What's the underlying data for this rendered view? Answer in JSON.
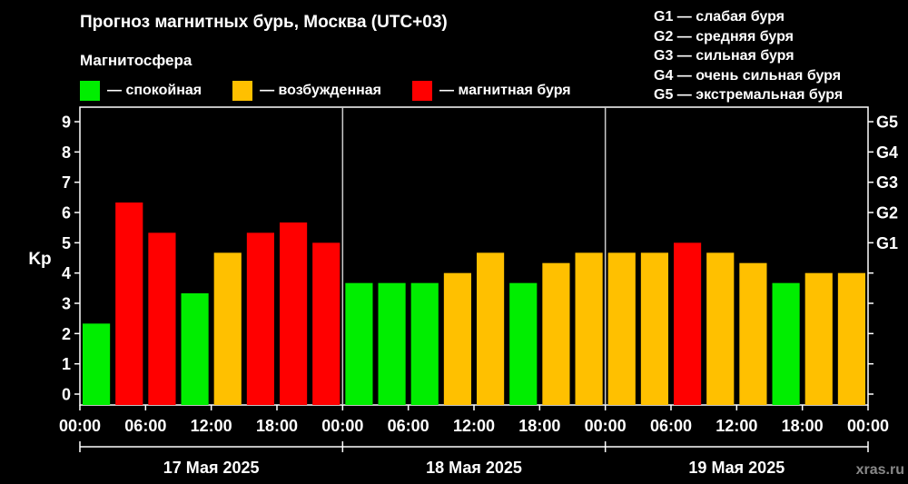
{
  "title": "Прогноз магнитных бурь, Москва (UTC+03)",
  "subtitle": "Магнитосфера",
  "legend": [
    {
      "label": "— спокойная",
      "color": "#00ee00"
    },
    {
      "label": "— возбужденная",
      "color": "#ffc000"
    },
    {
      "label": "— магнитная буря",
      "color": "#ff0000"
    }
  ],
  "g_legend": [
    "G1 — слабая буря",
    "G2 — средняя буря",
    "G3 — сильная буря",
    "G4 — очень сильная буря",
    "G5 — экстремальная буря"
  ],
  "watermark": "xras.ru",
  "chart_data": {
    "type": "bar",
    "title": "Прогноз магнитных бурь, Москва (UTC+03)",
    "ylabel": "Kp",
    "ylim": [
      0,
      9
    ],
    "y_ticks": [
      "0",
      "1",
      "2",
      "3",
      "4",
      "5",
      "6",
      "7",
      "8",
      "9"
    ],
    "right_ticks": [
      {
        "label": "G1",
        "value": 5
      },
      {
        "label": "G2",
        "value": 6
      },
      {
        "label": "G3",
        "value": 7
      },
      {
        "label": "G4",
        "value": 8
      },
      {
        "label": "G5",
        "value": 9
      }
    ],
    "x_tick_labels": [
      "00:00",
      "06:00",
      "12:00",
      "18:00",
      "00:00",
      "06:00",
      "12:00",
      "18:00",
      "00:00",
      "06:00",
      "12:00",
      "18:00",
      "00:00"
    ],
    "days": [
      "17 Мая 2025",
      "18 Мая 2025",
      "19 Мая 2025"
    ],
    "colors": {
      "calm": "#00ee00",
      "active": "#ffc000",
      "storm": "#ff0000"
    },
    "values": [
      2.33,
      6.33,
      5.33,
      3.33,
      4.67,
      5.33,
      5.67,
      5.0,
      3.67,
      3.67,
      3.67,
      4.0,
      4.67,
      3.67,
      4.33,
      4.67,
      4.67,
      4.67,
      5.0,
      4.67,
      4.33,
      3.67,
      4.0,
      4.0
    ],
    "status": [
      "calm",
      "storm",
      "storm",
      "calm",
      "active",
      "storm",
      "storm",
      "storm",
      "calm",
      "calm",
      "calm",
      "active",
      "active",
      "calm",
      "active",
      "active",
      "active",
      "active",
      "storm",
      "active",
      "active",
      "calm",
      "active",
      "active"
    ]
  }
}
